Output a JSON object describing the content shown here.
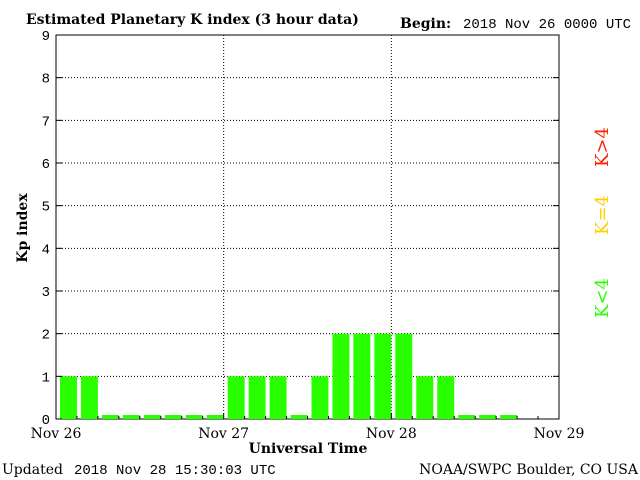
{
  "chart_data": {
    "type": "bar",
    "title": "Estimated Planetary K index (3 hour data)",
    "begin_label": "Begin:",
    "begin_value": "2018 Nov 26 0000 UTC",
    "xlabel": "Universal Time",
    "ylabel": "Kp index",
    "ylim": [
      0,
      9
    ],
    "yticks": [
      "0",
      "1",
      "2",
      "3",
      "4",
      "5",
      "6",
      "7",
      "8",
      "9"
    ],
    "xticks": [
      "Nov 26",
      "Nov 27",
      "Nov 28",
      "Nov 29"
    ],
    "grid": true,
    "series": [
      {
        "values": [
          1,
          1,
          0,
          0,
          0,
          0,
          0,
          0,
          1,
          1,
          1,
          0,
          1,
          2,
          2,
          2,
          2,
          1,
          1,
          0,
          0,
          0
        ]
      }
    ],
    "legend": {
      "placement": "right",
      "entries": [
        {
          "label": "K<4",
          "color": "#2aff00"
        },
        {
          "label": "K=4",
          "color": "#ffd000"
        },
        {
          "label": "K>4",
          "color": "#ff2000"
        }
      ]
    },
    "bar_color": "#2aff00"
  },
  "footer": {
    "updated_label": "Updated",
    "updated_value": "2018 Nov 28 15:30:03 UTC",
    "credit": "NOAA/SWPC Boulder, CO USA"
  }
}
